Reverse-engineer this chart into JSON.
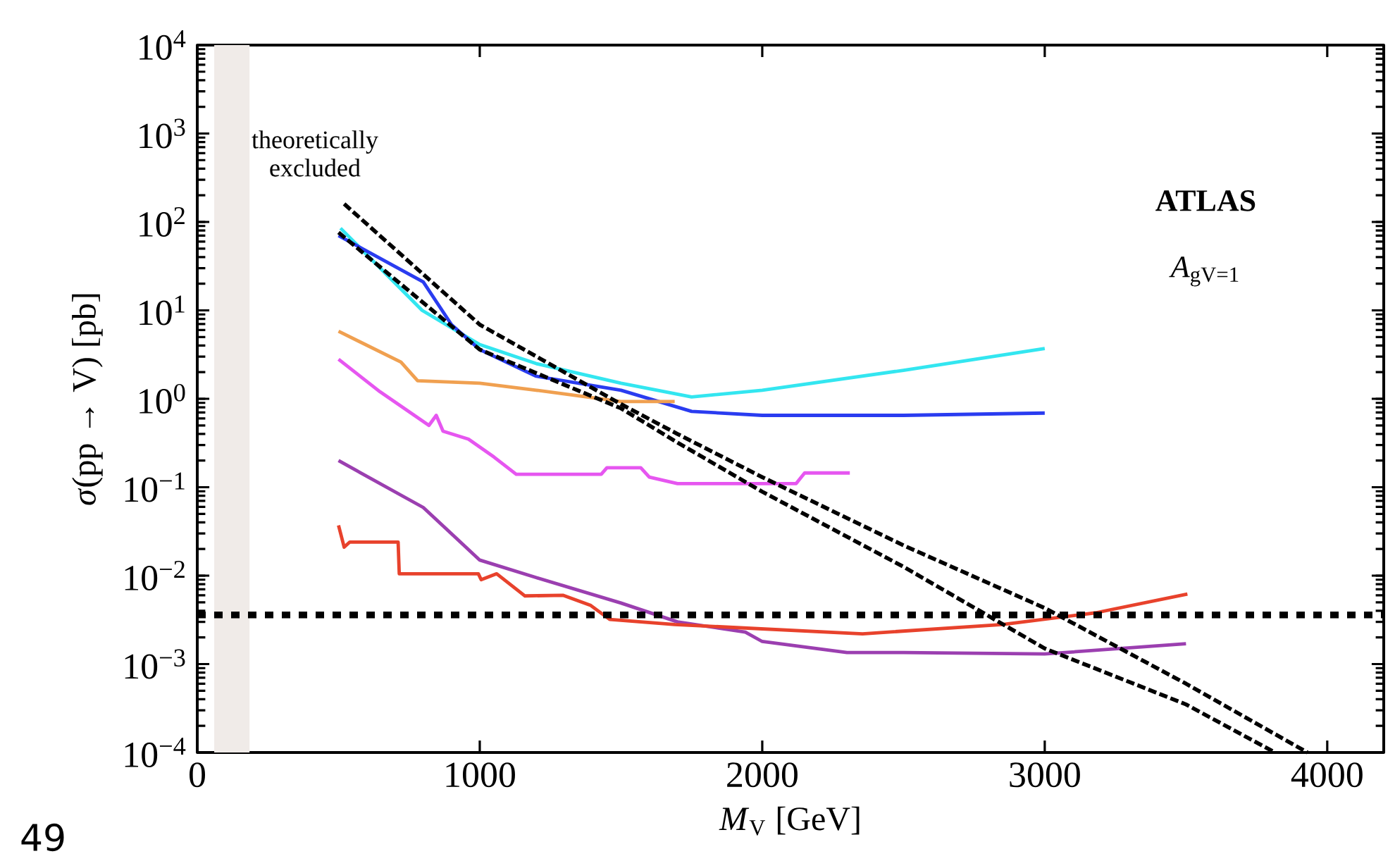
{
  "chart_data": {
    "type": "line",
    "xlabel": "*M*$_{V}$ [GeV]",
    "ylabel": "*σ*(pp → V) [pb]",
    "xlim": [
      0,
      4200
    ],
    "xticks": [
      0,
      1000,
      2000,
      3000,
      4000
    ],
    "ylim": [
      0.0001,
      10000
    ],
    "yticks": [
      {
        "value": 0.0001,
        "label": "10$^{−4}$"
      },
      {
        "value": 0.001,
        "label": "10$^{−3}$"
      },
      {
        "value": 0.01,
        "label": "10$^{−2}$"
      },
      {
        "value": 0.1,
        "label": "10$^{−1}$"
      },
      {
        "value": 1,
        "label": "10$^{0}$"
      },
      {
        "value": 10,
        "label": "10$^{1}$"
      },
      {
        "value": 100,
        "label": "10$^{2}$"
      },
      {
        "value": 1000,
        "label": "10$^{3}$"
      },
      {
        "value": 10000,
        "label": "10$^{4}$"
      }
    ],
    "log": "y",
    "marker": "none",
    "series": [
      {
        "color": "#33e6f0",
        "x": [
          507,
          796,
          1000,
          1200,
          1500,
          1750,
          2000,
          2500,
          3000
        ],
        "values": [
          85,
          10,
          4.1,
          2.5,
          1.5,
          1.05,
          1.25,
          2.1,
          3.7
        ]
      },
      {
        "color": "#2a3cf0",
        "x": [
          500,
          800,
          900,
          1000,
          1200,
          1500,
          1750,
          2000,
          2500,
          3000
        ],
        "values": [
          70,
          21,
          6.9,
          3.6,
          1.8,
          1.25,
          0.72,
          0.65,
          0.65,
          0.69
        ]
      },
      {
        "color": "#f0a050",
        "x": [
          500,
          721,
          780,
          1000,
          1200,
          1500,
          1690
        ],
        "values": [
          5.8,
          2.6,
          1.6,
          1.5,
          1.25,
          0.93,
          0.93
        ]
      },
      {
        "color": "#e656f0",
        "x": [
          500,
          647,
          820,
          846,
          870,
          960,
          1050,
          1129,
          1430,
          1450,
          1570,
          1600,
          1700,
          2120,
          2150,
          2310
        ],
        "values": [
          2.8,
          1.2,
          0.5,
          0.65,
          0.43,
          0.35,
          0.22,
          0.14,
          0.14,
          0.166,
          0.166,
          0.13,
          0.11,
          0.11,
          0.145,
          0.145
        ]
      },
      {
        "color": "#9b3fb0",
        "x": [
          500,
          800,
          1000,
          1200,
          1500,
          1700,
          1940,
          2000,
          2300,
          2500,
          3000,
          3500
        ],
        "values": [
          0.2,
          0.059,
          0.015,
          0.0095,
          0.0049,
          0.003,
          0.0023,
          0.0018,
          0.00135,
          0.00135,
          0.0013,
          0.0017
        ]
      },
      {
        "color": "#e8422c",
        "x": [
          500,
          520,
          540,
          711,
          715,
          995,
          1005,
          1060,
          1160,
          1294,
          1393,
          1460,
          1690,
          2355,
          2850,
          3180,
          3505
        ],
        "values": [
          0.037,
          0.021,
          0.024,
          0.024,
          0.0105,
          0.0105,
          0.009,
          0.0105,
          0.0059,
          0.006,
          0.0046,
          0.0032,
          0.0028,
          0.0022,
          0.0028,
          0.0038,
          0.0062
        ]
      },
      {
        "color": "#000000",
        "line_style": "dashed",
        "x": [
          520,
          1000,
          1500,
          1700,
          2000,
          2500,
          3000,
          3500,
          3930
        ],
        "values": [
          160,
          6.9,
          0.87,
          0.4,
          0.13,
          0.022,
          0.0043,
          0.0006,
          0.0001
        ]
      },
      {
        "color": "#000000",
        "line_style": "dashed",
        "x": [
          500,
          1000,
          1500,
          1700,
          2000,
          2500,
          3000,
          3500,
          3815
        ],
        "values": [
          76,
          3.6,
          0.78,
          0.32,
          0.089,
          0.0126,
          0.0015,
          0.00035,
          0.0001
        ]
      }
    ],
    "bands": [
      {
        "axis": "x",
        "from": 60,
        "to": 185,
        "label": "theoretically excluded",
        "color": "#f0ebe8"
      }
    ],
    "ref_lines": [
      {
        "axis": "y",
        "value": 0.0036,
        "color": "#000000",
        "line_style": "dotted"
      }
    ],
    "annotations": [
      "**ATLAS**",
      "*A*$_{gV=1}$",
      "49"
    ]
  }
}
